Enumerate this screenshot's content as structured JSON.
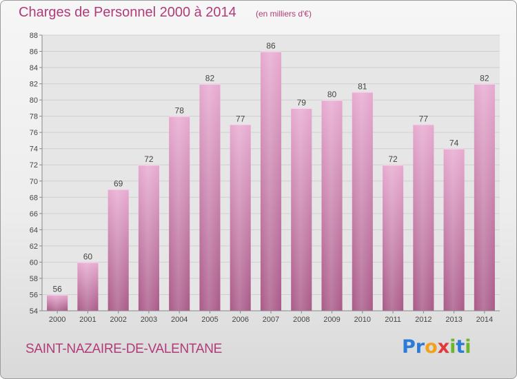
{
  "header": {
    "title": "Charges de Personnel 2000 à 2014",
    "subtitle": "(en milliers d'€)"
  },
  "footer": {
    "city": "SAINT-NAZAIRE-DE-VALENTANE",
    "logo": {
      "text": "Proxiti",
      "letters": [
        "P",
        "r",
        "o",
        "x",
        "i",
        "t",
        "i"
      ],
      "colors": [
        "#2b7bd8",
        "#2b7bd8",
        "#f2a11c",
        "#e03a3a",
        "#6fb52c",
        "#2b7bd8",
        "#6fb52c"
      ]
    }
  },
  "colors": {
    "title": "#b03b78",
    "bar_light": "#e7aad0",
    "bar_dark": "#a95a88",
    "grid": "#cfcfcf",
    "axis": "#888888"
  },
  "chart_data": {
    "type": "bar",
    "title": "Charges de Personnel 2000 à 2014",
    "subtitle": "(en milliers d'€)",
    "xlabel": "",
    "ylabel": "",
    "categories": [
      "2000",
      "2001",
      "2002",
      "2003",
      "2004",
      "2005",
      "2006",
      "2007",
      "2008",
      "2009",
      "2010",
      "2011",
      "2012",
      "2013",
      "2014"
    ],
    "values": [
      56,
      60,
      69,
      72,
      78,
      82,
      77,
      86,
      79,
      80,
      81,
      72,
      77,
      74,
      82
    ],
    "ylim": [
      54,
      88
    ],
    "ytick_step": 2,
    "yticks": [
      "54",
      "56",
      "58",
      "60",
      "62",
      "64",
      "66",
      "68",
      "70",
      "72",
      "74",
      "76",
      "78",
      "80",
      "82",
      "84",
      "86",
      "88"
    ],
    "grid": true,
    "data_labels": true,
    "legend": "none"
  }
}
